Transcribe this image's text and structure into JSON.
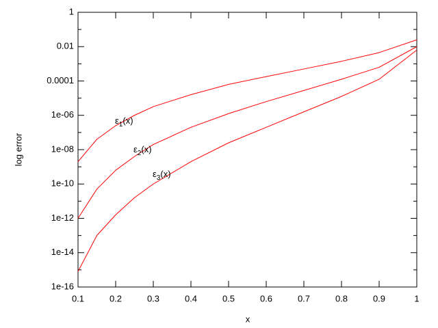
{
  "chart_data": {
    "type": "line",
    "xlabel": "x",
    "ylabel": "log error",
    "xlim": [
      0.1,
      1
    ],
    "xticks": [
      0.1,
      0.2,
      0.3,
      0.4,
      0.5,
      0.6,
      0.7,
      0.8,
      0.9,
      1
    ],
    "ylim": [
      1e-16,
      1
    ],
    "ylog": true,
    "yticks": [
      1,
      0.01,
      0.0001,
      {
        "value": 1e-06,
        "label": "1e-06"
      },
      {
        "value": 1e-08,
        "label": "1e-08"
      },
      {
        "value": 1e-10,
        "label": "1e-10"
      },
      {
        "value": 1e-12,
        "label": "1e-12"
      },
      {
        "value": 1e-14,
        "label": "1e-14"
      },
      {
        "value": 1e-16,
        "label": "1e-16"
      }
    ],
    "x": [
      0.1,
      0.15,
      0.2,
      0.25,
      0.3,
      0.4,
      0.5,
      0.6,
      0.7,
      0.8,
      0.9,
      1
    ],
    "series": [
      {
        "color": "#ff0000",
        "values": [
          2e-09,
          4e-08,
          2.5e-07,
          1e-06,
          3.2e-06,
          1.6e-05,
          6.3e-05,
          0.00018,
          0.0005,
          0.0014,
          0.0045,
          0.025
        ]
      },
      {
        "color": "#ff0000",
        "values": [
          1e-12,
          5e-11,
          6.3e-10,
          4e-09,
          2e-08,
          2e-07,
          1.26e-06,
          6.3e-06,
          2.8e-05,
          0.000126,
          0.00063,
          0.01
        ]
      },
      {
        "color": "#ff0000",
        "values": [
          8e-16,
          1e-13,
          1.6e-12,
          1.6e-11,
          1e-10,
          2e-09,
          2.5e-08,
          2e-07,
          1.6e-06,
          1.26e-05,
          0.000126,
          0.0063
        ]
      }
    ],
    "annotations": [
      {
        "text": "ε",
        "subscript": "1",
        "suffix": "(x)"
      },
      {
        "text": "ε",
        "subscript": "2",
        "suffix": "(x)"
      },
      {
        "text": "ε",
        "subscript": "3",
        "suffix": "(x)"
      }
    ]
  }
}
